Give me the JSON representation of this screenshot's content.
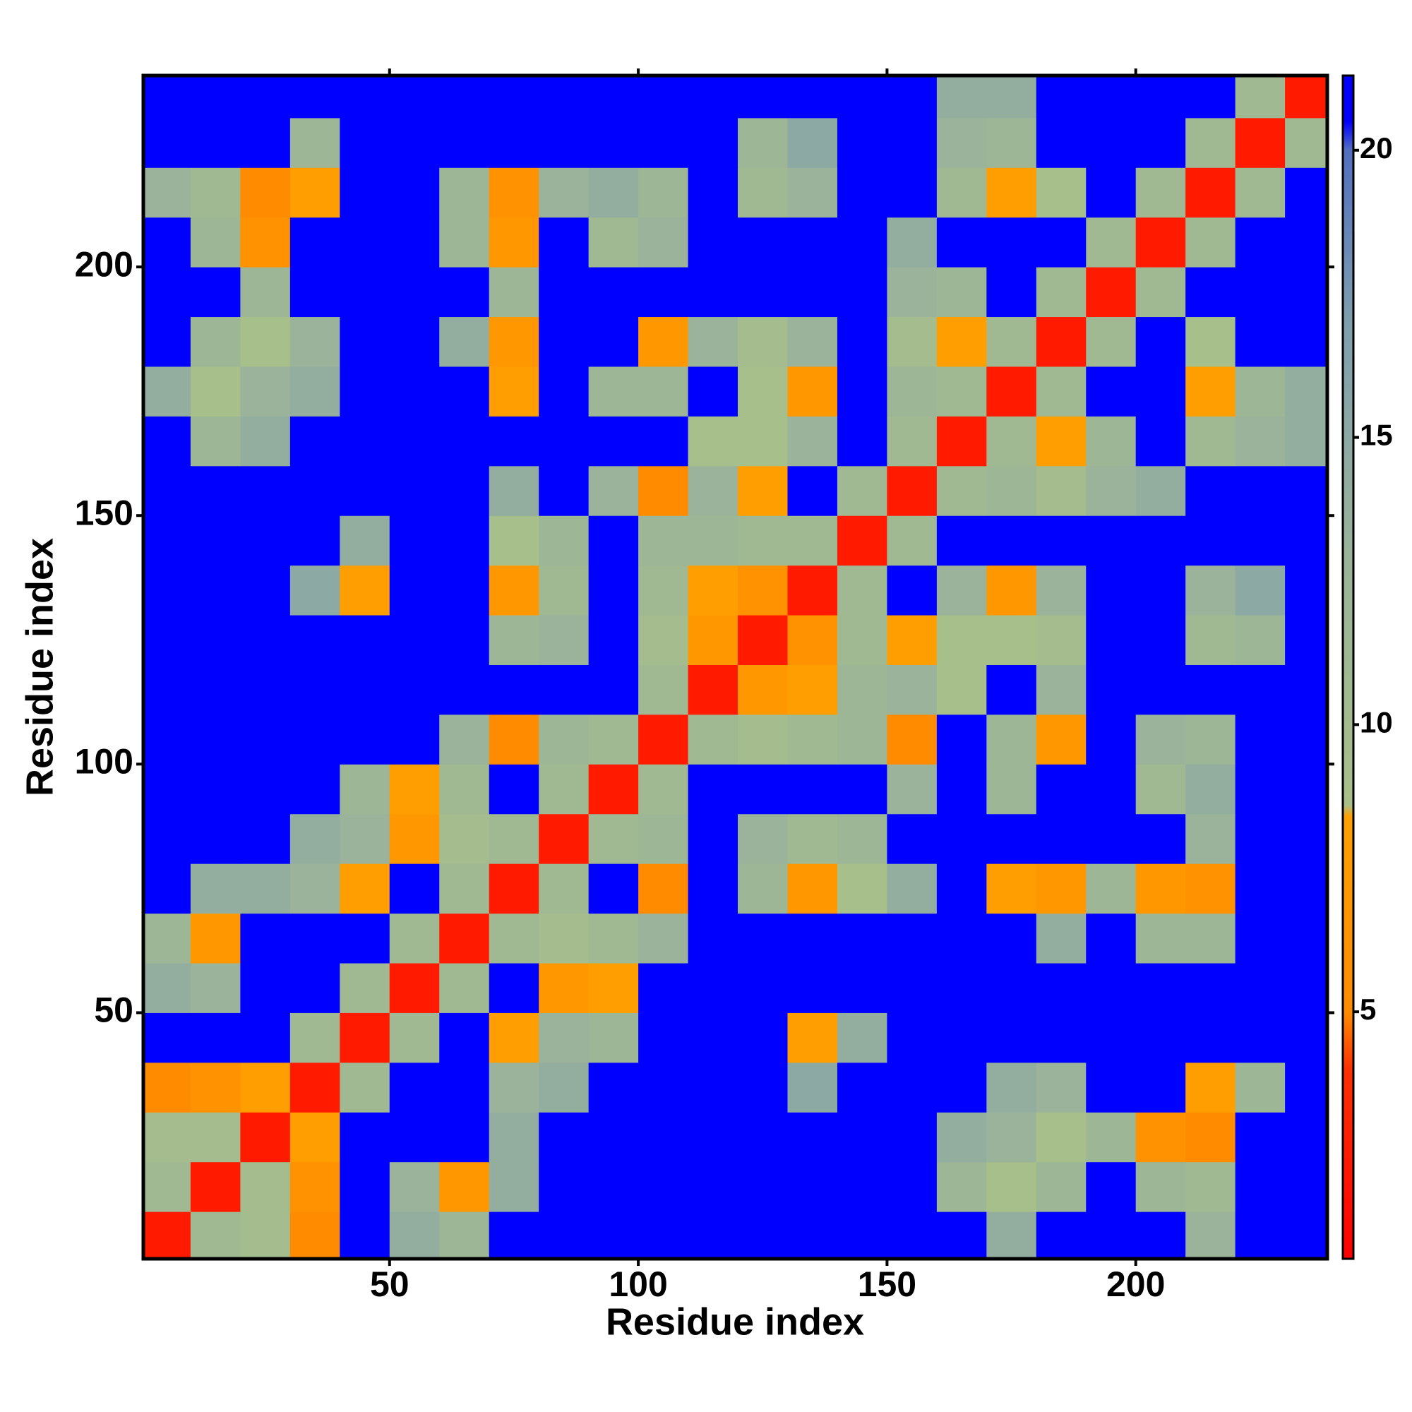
{
  "chart_data": {
    "type": "heatmap",
    "x_label": "Residue index",
    "y_label": "Residue index",
    "xlim": [
      0.5,
      238.5
    ],
    "ylim": [
      0.5,
      238.5
    ],
    "xticks": [
      50,
      100,
      150,
      200
    ],
    "yticks": [
      50,
      100,
      150,
      200
    ],
    "zlim": [
      0.7,
      21.3
    ],
    "zticks": [
      5,
      10,
      15,
      20
    ],
    "colorscale": [
      [
        0.7,
        "#ff0000"
      ],
      [
        4,
        "#ff3000"
      ],
      [
        5,
        "#ff8c00"
      ],
      [
        8.4,
        "#ffa000"
      ],
      [
        8.6,
        "#a8c088"
      ],
      [
        13,
        "#9ab39a"
      ],
      [
        17,
        "#7f9fae"
      ],
      [
        20,
        "#5070c0"
      ],
      [
        20.5,
        "#0000ff"
      ],
      [
        21.3,
        "#0000ff"
      ]
    ],
    "x": [
      5,
      15,
      25,
      35,
      45,
      55,
      65,
      75,
      85,
      95,
      105,
      115,
      125,
      135,
      145,
      155,
      165,
      175,
      185,
      195,
      205,
      215,
      225,
      235
    ],
    "y": [
      5,
      15,
      25,
      35,
      45,
      55,
      65,
      75,
      85,
      95,
      105,
      115,
      125,
      135,
      145,
      155,
      165,
      175,
      185,
      195,
      205,
      215,
      225,
      235
    ],
    "z": [
      [
        2.5,
        11,
        10,
        5,
        21,
        14,
        12,
        21,
        21,
        21,
        21,
        21,
        21,
        21,
        21,
        21,
        21,
        14,
        21,
        21,
        21,
        13,
        21,
        21
      ],
      [
        11,
        2.5,
        10,
        6,
        21,
        13,
        7,
        14,
        21,
        21,
        21,
        21,
        21,
        21,
        21,
        21,
        12,
        9,
        12,
        21,
        12,
        11,
        21,
        21
      ],
      [
        10,
        10,
        2.5,
        8,
        21,
        21,
        21,
        14,
        21,
        21,
        21,
        21,
        21,
        21,
        21,
        21,
        14,
        13,
        9,
        12,
        6,
        5,
        21,
        21
      ],
      [
        5,
        6,
        8,
        2.5,
        11,
        21,
        21,
        13,
        14,
        21,
        21,
        21,
        21,
        15,
        21,
        21,
        21,
        14,
        13,
        21,
        21,
        8,
        12,
        21
      ],
      [
        21,
        21,
        21,
        11,
        2.5,
        11,
        21,
        8,
        13,
        12,
        21,
        21,
        21,
        8,
        14,
        21,
        21,
        21,
        21,
        21,
        21,
        21,
        21,
        21
      ],
      [
        14,
        13,
        21,
        21,
        11,
        2.5,
        11,
        21,
        7,
        8,
        21,
        21,
        21,
        21,
        21,
        21,
        21,
        21,
        21,
        21,
        21,
        21,
        21,
        21
      ],
      [
        12,
        7,
        21,
        21,
        21,
        11,
        2.5,
        11,
        10,
        11,
        13,
        21,
        21,
        21,
        21,
        21,
        21,
        21,
        14,
        21,
        12,
        12,
        21,
        21
      ],
      [
        21,
        14,
        14,
        13,
        8,
        21,
        11,
        2.5,
        11,
        21,
        5,
        21,
        12,
        7,
        9,
        14,
        21,
        8,
        7,
        12,
        7,
        6,
        21,
        21
      ],
      [
        21,
        21,
        21,
        14,
        13,
        7,
        10,
        11,
        2.5,
        11,
        12,
        21,
        13,
        11,
        12,
        21,
        21,
        21,
        21,
        21,
        21,
        13,
        21,
        21
      ],
      [
        21,
        21,
        21,
        21,
        12,
        8,
        11,
        21,
        11,
        2.5,
        11,
        21,
        21,
        21,
        21,
        13,
        21,
        12,
        21,
        21,
        11,
        14,
        21,
        21
      ],
      [
        21,
        21,
        21,
        21,
        21,
        21,
        13,
        5,
        12,
        11,
        2.5,
        11,
        10,
        11,
        12,
        5,
        21,
        12,
        7,
        21,
        13,
        12,
        21,
        21
      ],
      [
        21,
        21,
        21,
        21,
        21,
        21,
        21,
        21,
        21,
        21,
        11,
        2.5,
        7,
        8,
        12,
        13,
        9,
        21,
        13,
        21,
        21,
        21,
        21,
        21
      ],
      [
        21,
        21,
        21,
        21,
        21,
        21,
        21,
        12,
        13,
        21,
        10,
        7,
        2.5,
        6,
        11,
        8,
        9,
        9,
        10,
        21,
        21,
        11,
        12,
        21
      ],
      [
        21,
        21,
        21,
        15,
        8,
        21,
        21,
        7,
        11,
        21,
        11,
        8,
        6,
        2.5,
        11,
        21,
        13,
        7,
        13,
        21,
        21,
        13,
        15,
        21
      ],
      [
        21,
        21,
        21,
        21,
        14,
        21,
        21,
        9,
        12,
        21,
        12,
        12,
        11,
        11,
        2.5,
        11,
        21,
        21,
        21,
        21,
        21,
        21,
        21,
        21
      ],
      [
        21,
        21,
        21,
        21,
        21,
        21,
        21,
        14,
        21,
        13,
        5,
        13,
        8,
        21,
        11,
        2.5,
        11,
        12,
        10,
        13,
        14,
        21,
        21,
        21
      ],
      [
        21,
        12,
        14,
        21,
        21,
        21,
        21,
        21,
        21,
        21,
        21,
        9,
        9,
        13,
        21,
        11,
        2.5,
        11,
        8,
        12,
        21,
        11,
        13,
        14
      ],
      [
        14,
        9,
        13,
        14,
        21,
        21,
        21,
        8,
        21,
        12,
        12,
        21,
        9,
        7,
        21,
        12,
        11,
        2.5,
        11,
        21,
        21,
        8,
        12,
        14
      ],
      [
        21,
        12,
        9,
        13,
        21,
        21,
        14,
        7,
        21,
        21,
        7,
        13,
        10,
        13,
        21,
        10,
        8,
        11,
        2.5,
        11,
        21,
        9,
        21,
        21
      ],
      [
        21,
        21,
        12,
        21,
        21,
        21,
        21,
        12,
        21,
        21,
        21,
        21,
        21,
        21,
        21,
        13,
        12,
        21,
        11,
        2.5,
        11,
        21,
        21,
        21
      ],
      [
        21,
        12,
        6,
        21,
        21,
        21,
        12,
        7,
        21,
        11,
        13,
        21,
        21,
        21,
        21,
        14,
        21,
        21,
        21,
        11,
        2.5,
        11,
        21,
        21
      ],
      [
        13,
        11,
        5,
        8,
        21,
        21,
        12,
        6,
        13,
        14,
        12,
        21,
        11,
        13,
        21,
        21,
        11,
        8,
        9,
        21,
        11,
        2.5,
        11,
        21
      ],
      [
        21,
        21,
        21,
        12,
        21,
        21,
        21,
        21,
        21,
        21,
        21,
        21,
        12,
        15,
        21,
        21,
        13,
        12,
        21,
        21,
        21,
        11,
        2.5,
        11
      ],
      [
        21,
        21,
        21,
        21,
        21,
        21,
        21,
        21,
        21,
        21,
        21,
        21,
        21,
        21,
        21,
        21,
        14,
        14,
        21,
        21,
        21,
        21,
        11,
        2.5
      ]
    ]
  }
}
